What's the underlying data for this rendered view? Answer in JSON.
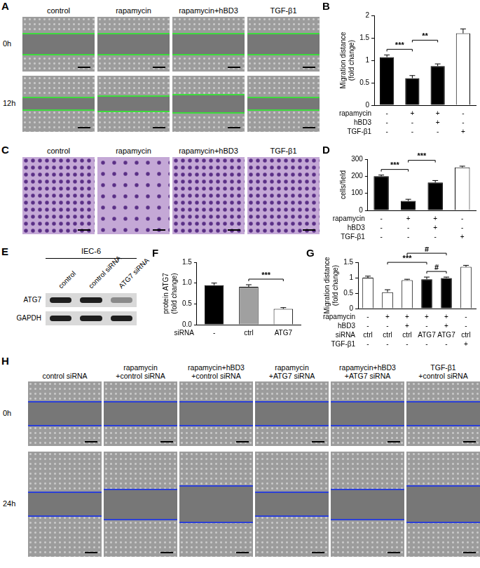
{
  "panels": {
    "A": {
      "label": "A",
      "columns": [
        "control",
        "rapamycin",
        "rapamycin+hBD3",
        "TGF-β1"
      ],
      "rows": [
        "0h",
        "12h"
      ]
    },
    "C": {
      "label": "C",
      "columns": [
        "control",
        "rapamycin",
        "rapamycin+hBD3",
        "TGF-β1"
      ]
    },
    "E": {
      "label": "E",
      "cell_line": "IEC-6",
      "lanes": [
        "control",
        "control siRNA",
        "ATG7 siRNA"
      ],
      "bands": [
        "ATG7",
        "GAPDH"
      ]
    },
    "H": {
      "label": "H",
      "columns": [
        [
          "control siRNA"
        ],
        [
          "rapamycin",
          "+control siRNA"
        ],
        [
          "rapamycin+hBD3",
          "+control siRNA"
        ],
        [
          "rapamycin",
          "+ATG7 siRNA"
        ],
        [
          "rapamycin+hBD3",
          "+ATG7 siRNA"
        ],
        [
          "TGF-β1",
          "+control siRNA"
        ]
      ],
      "rows": [
        "0h",
        "24h"
      ]
    }
  },
  "chart_data": [
    {
      "panel": "B",
      "type": "bar",
      "y_label": [
        "Migration distance",
        "(fold change)"
      ],
      "values": [
        1.07,
        0.6,
        0.87,
        1.6
      ],
      "errors": [
        0.05,
        0.06,
        0.05,
        0.1
      ],
      "colors": [
        "#000000",
        "#000000",
        "#000000",
        "#ffffff"
      ],
      "ylim": [
        0,
        2
      ],
      "yticks": [
        0,
        0.5,
        1,
        1.5,
        2
      ],
      "grid": false,
      "tick_labels": "y",
      "conditions": [
        {
          "name": "rapamycin",
          "values": [
            "-",
            "+",
            "+",
            "-"
          ]
        },
        {
          "name": "hBD3",
          "values": [
            "-",
            "-",
            "+",
            "-"
          ]
        },
        {
          "name": "TGF-β1",
          "values": [
            "-",
            "-",
            "-",
            "+"
          ]
        }
      ],
      "annotations": [
        {
          "from": 0,
          "to": 1,
          "label": "***"
        },
        {
          "from": 1,
          "to": 2,
          "label": "**"
        }
      ]
    },
    {
      "panel": "D",
      "type": "bar",
      "y_label": "cells/field",
      "values": [
        200,
        55,
        163,
        252
      ],
      "errors": [
        7,
        10,
        12,
        7
      ],
      "colors": [
        "#000000",
        "#000000",
        "#000000",
        "#ffffff"
      ],
      "ylim": [
        0,
        300
      ],
      "yticks": [
        0,
        100,
        200,
        300
      ],
      "grid": false,
      "tick_labels": "y",
      "conditions": [
        {
          "name": "rapamycin",
          "values": [
            "-",
            "+",
            "+",
            "-"
          ]
        },
        {
          "name": "hBD3",
          "values": [
            "-",
            "-",
            "+",
            "-"
          ]
        },
        {
          "name": "TGF-β1",
          "values": [
            "-",
            "-",
            "-",
            "+"
          ]
        }
      ],
      "annotations": [
        {
          "from": 0,
          "to": 1,
          "label": "***"
        },
        {
          "from": 1,
          "to": 2,
          "label": "***"
        }
      ]
    },
    {
      "panel": "F",
      "type": "bar",
      "y_label": [
        "protein ATG7",
        "(fold change)"
      ],
      "values": [
        0.95,
        0.91,
        0.38
      ],
      "errors": [
        0.05,
        0.05,
        0.03
      ],
      "colors": [
        "#000000",
        "#a0a0a0",
        "#ffffff"
      ],
      "ylim": [
        0,
        1.5
      ],
      "yticks": [
        {
          "value": 0,
          "label": "0.0"
        },
        {
          "value": 0.5,
          "label": "0.5"
        },
        {
          "value": 1,
          "label": "1.0"
        },
        {
          "value": 1.5,
          "label": "1.5"
        }
      ],
      "grid": false,
      "tick_labels": "y",
      "conditions": [
        {
          "name": "siRNA",
          "values": [
            "-",
            "ctrl",
            "ATG7"
          ]
        }
      ],
      "annotations": [
        {
          "from": 1,
          "to": 2,
          "label": "***"
        }
      ]
    },
    {
      "panel": "G",
      "type": "bar",
      "y_label": [
        "Migration distance",
        "(fold change)"
      ],
      "values": [
        1.0,
        0.53,
        0.92,
        0.95,
        0.99,
        1.35
      ],
      "errors": [
        0.05,
        0.08,
        0.03,
        0.07,
        0.03,
        0.05
      ],
      "colors": [
        "#ffffff",
        "#ffffff",
        "#ffffff",
        "#000000",
        "#000000",
        "#ffffff"
      ],
      "ylim": [
        0,
        1.5
      ],
      "yticks": [
        0,
        0.5,
        1,
        1.5
      ],
      "grid": false,
      "tick_labels": "y",
      "conditions": [
        {
          "name": "rapamycin",
          "values": [
            "-",
            "+",
            "+",
            "+",
            "+",
            "-"
          ]
        },
        {
          "name": "hBD3",
          "values": [
            "-",
            "-",
            "+",
            "-",
            "+",
            "-"
          ]
        },
        {
          "name": "siRNA",
          "values": [
            "ctrl",
            "ctrl",
            "ctrl",
            "ATG7",
            "ATG7",
            "ctrl"
          ]
        },
        {
          "name": "TGF-β1",
          "values": [
            "-",
            "-",
            "-",
            "-",
            "-",
            "+"
          ]
        }
      ],
      "annotations": [
        {
          "from": 3,
          "to": 4,
          "label": "#"
        },
        {
          "from": 1,
          "to": 3,
          "label": "***"
        },
        {
          "from": 2,
          "to": 4,
          "label": "#"
        }
      ]
    }
  ]
}
